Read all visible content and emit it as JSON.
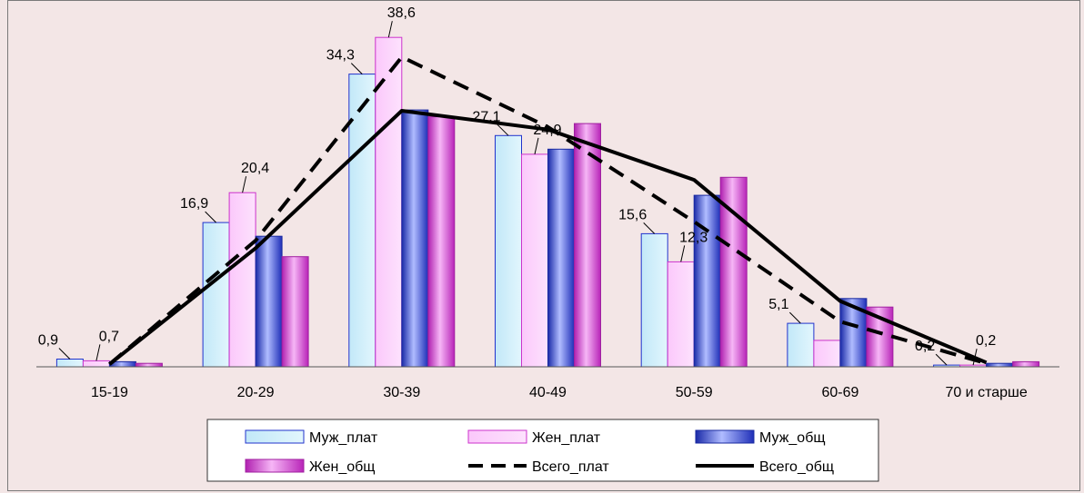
{
  "chart_data": {
    "type": "bar",
    "categories": [
      "15-19",
      "20-29",
      "30-39",
      "40-49",
      "50-59",
      "60-69",
      "70 и старше"
    ],
    "series": [
      {
        "name": "Муж_плат",
        "kind": "bar",
        "values": [
          0.9,
          16.9,
          34.3,
          27.1,
          15.6,
          5.1,
          0.2
        ]
      },
      {
        "name": "Жен_плат",
        "kind": "bar",
        "values": [
          0.7,
          20.4,
          38.6,
          24.9,
          12.3,
          3.1,
          0.2
        ]
      },
      {
        "name": "Муж_общ",
        "kind": "bar",
        "values": [
          0.6,
          15.3,
          30.1,
          25.5,
          20.1,
          8.0,
          0.4
        ]
      },
      {
        "name": "Жен_общ",
        "kind": "bar",
        "values": [
          0.4,
          12.9,
          29.3,
          28.5,
          22.2,
          7.0,
          0.6
        ]
      },
      {
        "name": "Всего_плат",
        "kind": "line-dashed",
        "values": [
          0.3,
          14.8,
          36.3,
          28.1,
          17.0,
          5.3,
          0.4
        ]
      },
      {
        "name": "Всего_общ",
        "kind": "line-solid",
        "values": [
          0.3,
          13.9,
          30.0,
          27.8,
          21.9,
          7.7,
          0.5
        ]
      }
    ],
    "data_labels": [
      {
        "series": "Муж_плат",
        "category": "15-19",
        "text": "0,9"
      },
      {
        "series": "Жен_плат",
        "category": "15-19",
        "text": "0,7"
      },
      {
        "series": "Муж_плат",
        "category": "20-29",
        "text": "16,9"
      },
      {
        "series": "Жен_плат",
        "category": "20-29",
        "text": "20,4"
      },
      {
        "series": "Муж_плат",
        "category": "30-39",
        "text": "34,3"
      },
      {
        "series": "Жен_плат",
        "category": "30-39",
        "text": "38,6"
      },
      {
        "series": "Муж_плат",
        "category": "40-49",
        "text": "27,1"
      },
      {
        "series": "Жен_плат",
        "category": "40-49",
        "text": "24,9"
      },
      {
        "series": "Муж_плат",
        "category": "50-59",
        "text": "15,6"
      },
      {
        "series": "Жен_плат",
        "category": "50-59",
        "text": "12,3"
      },
      {
        "series": "Муж_плат",
        "category": "60-69",
        "text": "5,1"
      },
      {
        "series": "Муж_плат",
        "category": "70 и старше",
        "text": "0,2"
      },
      {
        "series": "Жен_плат",
        "category": "70 и старше",
        "text": "0,2"
      }
    ],
    "ylim": [
      0,
      40
    ],
    "grid": false,
    "legend_position": "bottom",
    "colors": {
      "background": "#f3e6e6",
      "muzh_plat_fill": "#cdeefb",
      "muzh_plat_stroke": "#2233cc",
      "zhen_plat_fill": "#fcd0fc",
      "zhen_plat_stroke": "#cc33cc",
      "muzh_obsh_fill": "#3344cc",
      "zhen_obsh_fill": "#cc44cc",
      "line": "#000000"
    }
  }
}
